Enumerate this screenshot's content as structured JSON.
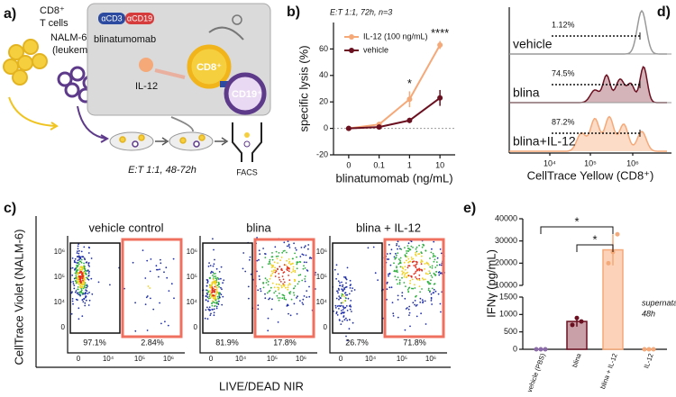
{
  "panel_a": {
    "label": "a)",
    "t_cells": [
      "CD8⁺",
      "T cells"
    ],
    "nalm6": [
      "NALM-6",
      "(leukemia)"
    ],
    "anti_cd3": "αCD3",
    "anti_cd19": "αCD19",
    "blinatumomab": "blinatumomab",
    "cd8": "CD8⁺",
    "cd19": "CD19⁺",
    "il12": "IL-12",
    "condition": "E:T 1:1, 48-72h",
    "facs": "FACS"
  },
  "chart_data": [
    {
      "type": "line",
      "panel_label": "b)",
      "subtitle": "E:T 1:1, 72h, n=3",
      "categories": [
        "0",
        "0.1",
        "1",
        "10"
      ],
      "series": [
        {
          "name": "IL-12 (100 ng/mL)",
          "color": "#f5a878",
          "values": [
            0,
            3,
            22,
            63
          ],
          "errors": [
            1,
            2,
            6,
            3
          ]
        },
        {
          "name": "vehicle",
          "color": "#6b1020",
          "values": [
            0,
            1,
            6,
            23
          ],
          "errors": [
            1,
            1,
            2,
            6
          ]
        }
      ],
      "annotations": [
        null,
        null,
        "*",
        "****"
      ],
      "ylim": [
        -20,
        80
      ],
      "yticks": [
        -20,
        0,
        20,
        40,
        60
      ],
      "ylabel": "specific lysis (%)",
      "xlabel": "blinatumomab (ng/mL)",
      "legend": "upper left",
      "zero_line": true
    },
    {
      "type": "bar",
      "panel_label": "e)",
      "categories": [
        "vehicle (PBS)",
        "blina",
        "blina + IL-12",
        "IL-12"
      ],
      "values": [
        0,
        800,
        26000,
        0
      ],
      "errors": [
        0,
        150,
        7000,
        0
      ],
      "points": [
        [
          0,
          0,
          0
        ],
        [
          700,
          900,
          800
        ],
        [
          20000,
          25000,
          33000
        ],
        [
          0,
          0,
          0
        ]
      ],
      "colors": [
        "#8a6aa8",
        "#6b1020",
        "#f5a878",
        "#f5a878"
      ],
      "fills": [
        "#e6dcec",
        "#c9a0a7",
        "#fcd3b9",
        "#fde4d3"
      ],
      "ylim": [
        0,
        40000
      ],
      "ybreak": [
        1500,
        10000
      ],
      "yticks": [
        0,
        500,
        1000,
        1500,
        10000,
        20000,
        30000,
        40000
      ],
      "ylabel": "IFNγ (pg/mL)",
      "annotation": [
        "supernatant,",
        "48h"
      ],
      "significance": [
        "*",
        "*"
      ]
    }
  ],
  "panel_c": {
    "label": "c)",
    "plots": [
      {
        "title": "vehicle control",
        "gates": [
          "97.1%",
          "2.84%"
        ]
      },
      {
        "title": "blina",
        "gates": [
          "81.9%",
          "17.8%"
        ]
      },
      {
        "title": "blina + IL-12",
        "gates": [
          "26.7%",
          "71.8%"
        ]
      }
    ],
    "yticks": [
      "10⁶",
      "10⁵",
      "10⁴",
      "0"
    ],
    "xticks": [
      "0",
      "10⁴",
      "10⁵",
      "10⁶"
    ],
    "ylabel": "CellTrace Violet (NALM-6)",
    "xlabel": "LIVE/DEAD NIR"
  },
  "panel_d": {
    "label": "d)",
    "rows": [
      {
        "name": "vehicle",
        "percent": "1.12%"
      },
      {
        "name": "blina",
        "percent": "74.5%"
      },
      {
        "name": "blina+IL-12",
        "percent": "87.2%"
      }
    ],
    "xticks": [
      "10⁴",
      "10⁵",
      "10⁶"
    ],
    "xlabel": "CellTrace Yellow (CD8⁺)"
  }
}
